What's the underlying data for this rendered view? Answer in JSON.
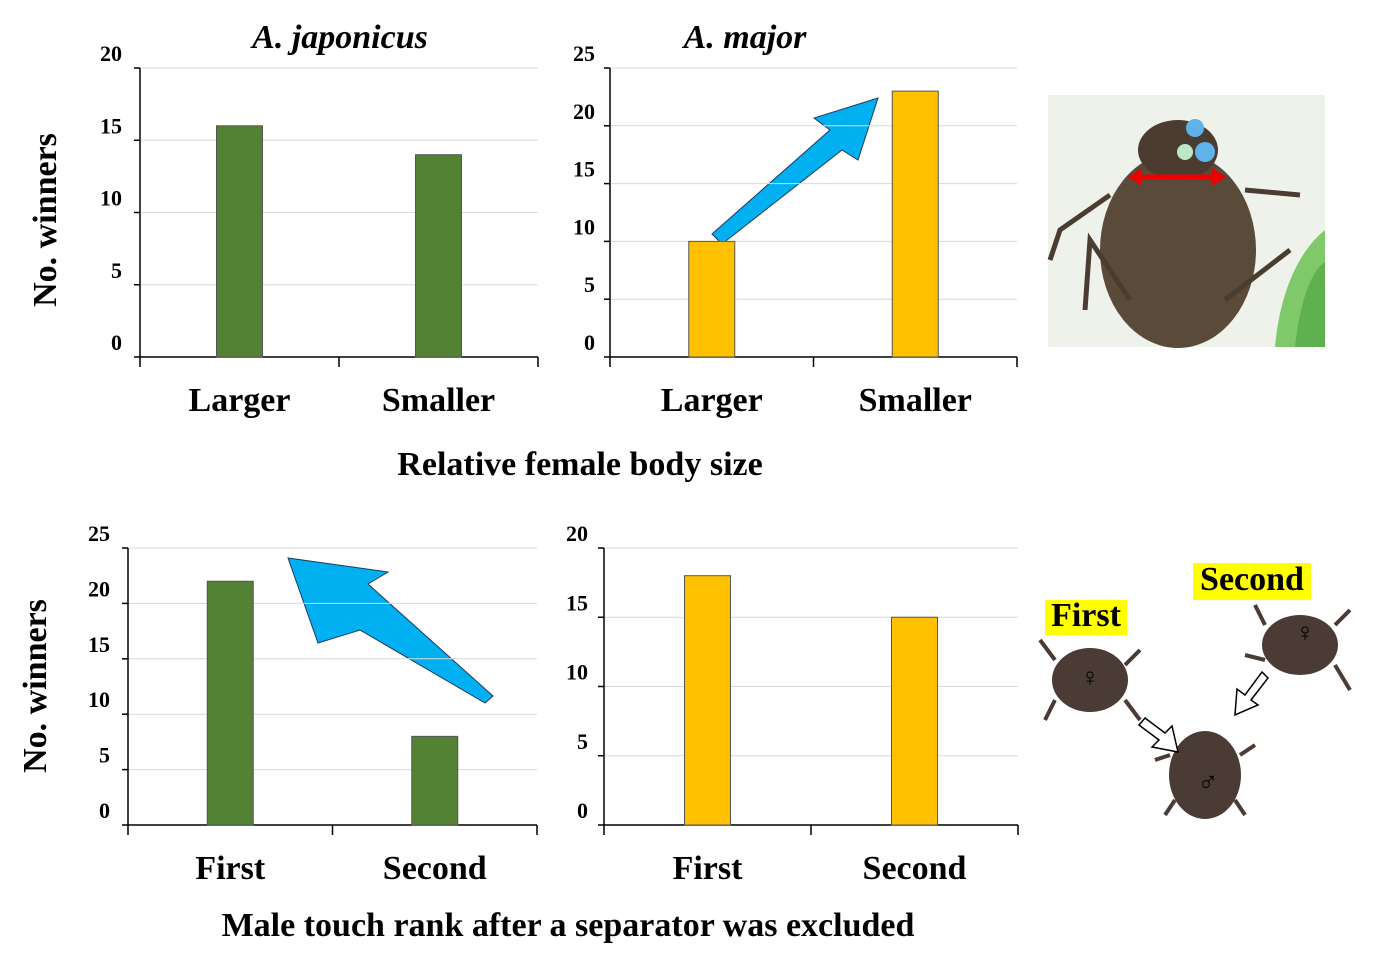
{
  "chart_data": [
    {
      "type": "bar",
      "title": "A. japonicus",
      "ylabel": "No. winners",
      "xlabel": "Relative female body size",
      "categories": [
        "Larger",
        "Smaller"
      ],
      "values": [
        16,
        14
      ],
      "color": "#548235",
      "ylim": [
        0,
        20
      ],
      "yticks": [
        0,
        5,
        10,
        15,
        20
      ],
      "grid": true
    },
    {
      "type": "bar",
      "title": "A. major",
      "categories": [
        "Larger",
        "Smaller"
      ],
      "values": [
        10,
        23
      ],
      "color": "#ffc000",
      "ylim": [
        0,
        25
      ],
      "yticks": [
        0,
        5,
        10,
        15,
        20,
        25
      ],
      "grid": true
    },
    {
      "type": "bar",
      "ylabel": "No. winners",
      "xlabel": "Male touch rank after a separator was excluded",
      "categories": [
        "First",
        "Second"
      ],
      "values": [
        22,
        8
      ],
      "color": "#548235",
      "ylim": [
        0,
        25
      ],
      "yticks": [
        0,
        5,
        10,
        15,
        20,
        25
      ],
      "grid": true
    },
    {
      "type": "bar",
      "categories": [
        "First",
        "Second"
      ],
      "values": [
        18,
        15
      ],
      "color": "#ffc000",
      "ylim": [
        0,
        20
      ],
      "yticks": [
        0,
        5,
        10,
        15,
        20
      ],
      "grid": true
    }
  ],
  "illustration": {
    "labels": [
      "First",
      "Second"
    ]
  }
}
